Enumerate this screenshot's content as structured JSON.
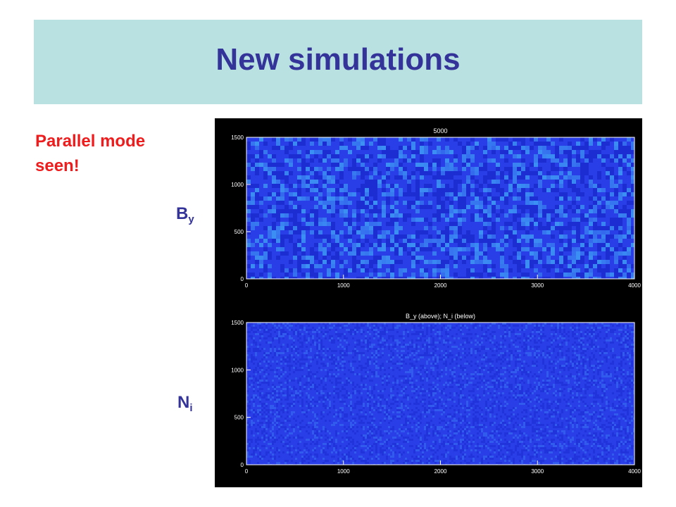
{
  "slide": {
    "title": "New simulations",
    "note_line1": "Parallel mode",
    "note_line2": "seen!",
    "label_top": {
      "main": "B",
      "sub": "y"
    },
    "label_bottom": {
      "main": "N",
      "sub": "i"
    }
  },
  "colors": {
    "banner": "#b9e1e1",
    "title": "#333399",
    "note": "#ee1c1c",
    "figure_bg": "#000000",
    "field_base": "#2a3ee8",
    "field_dark": "#1020c0",
    "field_light": "#3fa0f5"
  },
  "chart_data": [
    {
      "type": "heatmap",
      "title": "5000",
      "xlabel": "",
      "ylabel": "",
      "xlim": [
        0,
        4000
      ],
      "ylim": [
        0,
        1500
      ],
      "x_ticks": [
        "0",
        "1000",
        "2000",
        "3000",
        "4000"
      ],
      "y_ticks": [
        "0",
        "500",
        "1000",
        "1500"
      ]
    },
    {
      "type": "heatmap",
      "title": "B_y (above); N_i (below)",
      "xlabel": "",
      "ylabel": "",
      "xlim": [
        0,
        4000
      ],
      "ylim": [
        0,
        1500
      ],
      "x_ticks": [
        "0",
        "1000",
        "2000",
        "3000",
        "4000"
      ],
      "y_ticks": [
        "0",
        "500",
        "1000",
        "1500"
      ]
    }
  ]
}
